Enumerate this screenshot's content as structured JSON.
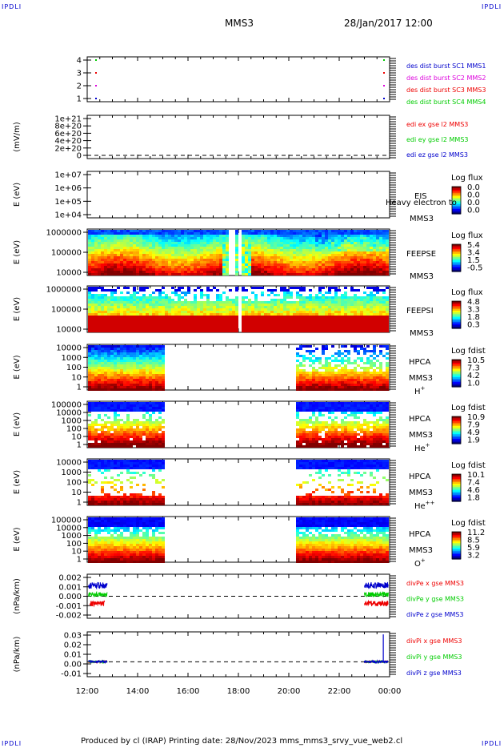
{
  "header": {
    "left": "MMS3",
    "right": "28/Jan/2017 12:00"
  },
  "corner_tag": "IPDLI",
  "footer": {
    "text": "Produced by cl (IRAP)   Printing date: 28/Nov/2023   mms_mms3_srvy_vue_web2.cl"
  },
  "colors": {
    "red": "#ee0000",
    "green": "#00cc00",
    "blue": "#0000cc",
    "magenta": "#dd00dd"
  },
  "chart_data": {
    "type": "heatmap",
    "x_axis": {
      "range": [
        "12:00",
        "00:00"
      ],
      "ticks": [
        "12:00",
        "14:00",
        "16:00",
        "18:00",
        "20:00",
        "22:00",
        "00:00"
      ]
    },
    "panels": [
      {
        "id": "burst",
        "type": "scatter",
        "ticks": [
          "4",
          "3",
          "2",
          "1"
        ],
        "ylim": [
          0.5,
          4.5
        ],
        "legend": [
          {
            "text": "des dist burst SC1 MMS1",
            "color": "#0000cc"
          },
          {
            "text": "des dist burst SC2 MMS2",
            "color": "#dd00dd"
          },
          {
            "text": "des dist burst SC3 MMS3",
            "color": "#ee0000"
          },
          {
            "text": "des dist burst SC4 MMS4",
            "color": "#00cc00"
          }
        ]
      },
      {
        "id": "edi",
        "type": "line",
        "ylabel": "(mV/m)",
        "ticks": [
          "1e+21",
          "8e+20",
          "6e+20",
          "4e+20",
          "2e+20",
          "0"
        ],
        "legend": [
          {
            "text": "edi ex gse l2 MMS3",
            "color": "#ee0000"
          },
          {
            "text": "edi ey gse l2 MMS3",
            "color": "#00cc00"
          },
          {
            "text": "edi ez gse l2 MMS3",
            "color": "#0000cc"
          }
        ]
      },
      {
        "id": "eis",
        "type": "heatmap",
        "ylabel": "E (eV)",
        "scale": "log",
        "ticks": [
          "1e+07",
          "1e+06",
          "1e+05",
          "1e+04"
        ],
        "name": [
          "EIS",
          "MMS3"
        ],
        "overlay": "Heavy electron to",
        "cbar_title": "Log flux",
        "cbar_ticks": [
          "0.0",
          "0.0",
          "0.0",
          "0.0"
        ]
      },
      {
        "id": "feepse",
        "type": "heatmap",
        "ylabel": "E (eV)",
        "scale": "log",
        "ticks": [
          "1000000",
          "100000",
          "10000"
        ],
        "name": [
          "FEEPSE",
          "MMS3"
        ],
        "cbar_title": "Log flux",
        "cbar_ticks": [
          "5.4",
          "3.4",
          "1.5",
          "-0.5"
        ]
      },
      {
        "id": "feepsi",
        "type": "heatmap",
        "ylabel": "E (eV)",
        "scale": "log",
        "ticks": [
          "1000000",
          "100000",
          "10000"
        ],
        "name": [
          "FEEPSI",
          "MMS3"
        ],
        "cbar_title": "Log flux",
        "cbar_ticks": [
          "4.8",
          "3.3",
          "1.8",
          "0.3"
        ]
      },
      {
        "id": "hpca_h",
        "type": "heatmap",
        "ylabel": "E (eV)",
        "scale": "log",
        "ticks": [
          "10000",
          "1000",
          "100",
          "10",
          "1"
        ],
        "name": [
          "HPCA",
          "MMS3"
        ],
        "species": "H",
        "sup": "+",
        "cbar_title": "Log fdist",
        "cbar_ticks": [
          "10.5",
          "7.3",
          "4.2",
          "1.0"
        ],
        "coverage": [
          [
            "12:00",
            "15:00"
          ],
          [
            "20:10",
            "00:00"
          ]
        ]
      },
      {
        "id": "hpca_he",
        "type": "heatmap",
        "ylabel": "E (eV)",
        "scale": "log",
        "ticks": [
          "100000",
          "10000",
          "1000",
          "100",
          "10",
          "1"
        ],
        "name": [
          "HPCA",
          "MMS3"
        ],
        "species": "He",
        "sup": "+",
        "cbar_title": "Log fdist",
        "cbar_ticks": [
          "10.9",
          "7.9",
          "4.9",
          "1.9"
        ],
        "coverage": [
          [
            "12:00",
            "15:00"
          ],
          [
            "20:10",
            "00:00"
          ]
        ]
      },
      {
        "id": "hpca_he2",
        "type": "heatmap",
        "ylabel": "E (eV)",
        "scale": "log",
        "ticks": [
          "10000",
          "1000",
          "100",
          "10",
          "1"
        ],
        "name": [
          "HPCA",
          "MMS3"
        ],
        "species": "He",
        "sup": "++",
        "cbar_title": "Log fdist",
        "cbar_ticks": [
          "10.1",
          "7.4",
          "4.6",
          "1.8"
        ],
        "coverage": [
          [
            "12:00",
            "15:00"
          ],
          [
            "20:10",
            "00:00"
          ]
        ]
      },
      {
        "id": "hpca_o",
        "type": "heatmap",
        "ylabel": "E (eV)",
        "scale": "log",
        "ticks": [
          "100000",
          "10000",
          "1000",
          "100",
          "10",
          "1"
        ],
        "name": [
          "HPCA",
          "MMS3"
        ],
        "species": "O",
        "sup": "+",
        "cbar_title": "Log fdist",
        "cbar_ticks": [
          "11.2",
          "8.5",
          "5.9",
          "3.2"
        ],
        "coverage": [
          [
            "12:00",
            "15:00"
          ],
          [
            "20:10",
            "00:00"
          ]
        ]
      },
      {
        "id": "divpe",
        "type": "line",
        "ylabel": "(nPa/km)",
        "ticks": [
          "0.002",
          "0.001",
          "0.000",
          "-0.001",
          "-0.002"
        ],
        "ylim": [
          -0.0024,
          0.0024
        ],
        "legend": [
          {
            "text": "divPe x gse MMS3",
            "color": "#ee0000"
          },
          {
            "text": "divPe y gse MMS3",
            "color": "#00cc00"
          },
          {
            "text": "divPe z gse MMS3",
            "color": "#0000cc"
          }
        ]
      },
      {
        "id": "divpi",
        "type": "line",
        "ylabel": "(nPa/km)",
        "ticks": [
          "0.03",
          "0.02",
          "0.01",
          "0.00",
          "-0.01"
        ],
        "ylim": [
          -0.018,
          0.036
        ],
        "legend": [
          {
            "text": "divPi x gse MMS3",
            "color": "#ee0000"
          },
          {
            "text": "divPi y gse MMS3",
            "color": "#00cc00"
          },
          {
            "text": "divPi z gse MMS3",
            "color": "#0000cc"
          }
        ]
      }
    ]
  }
}
